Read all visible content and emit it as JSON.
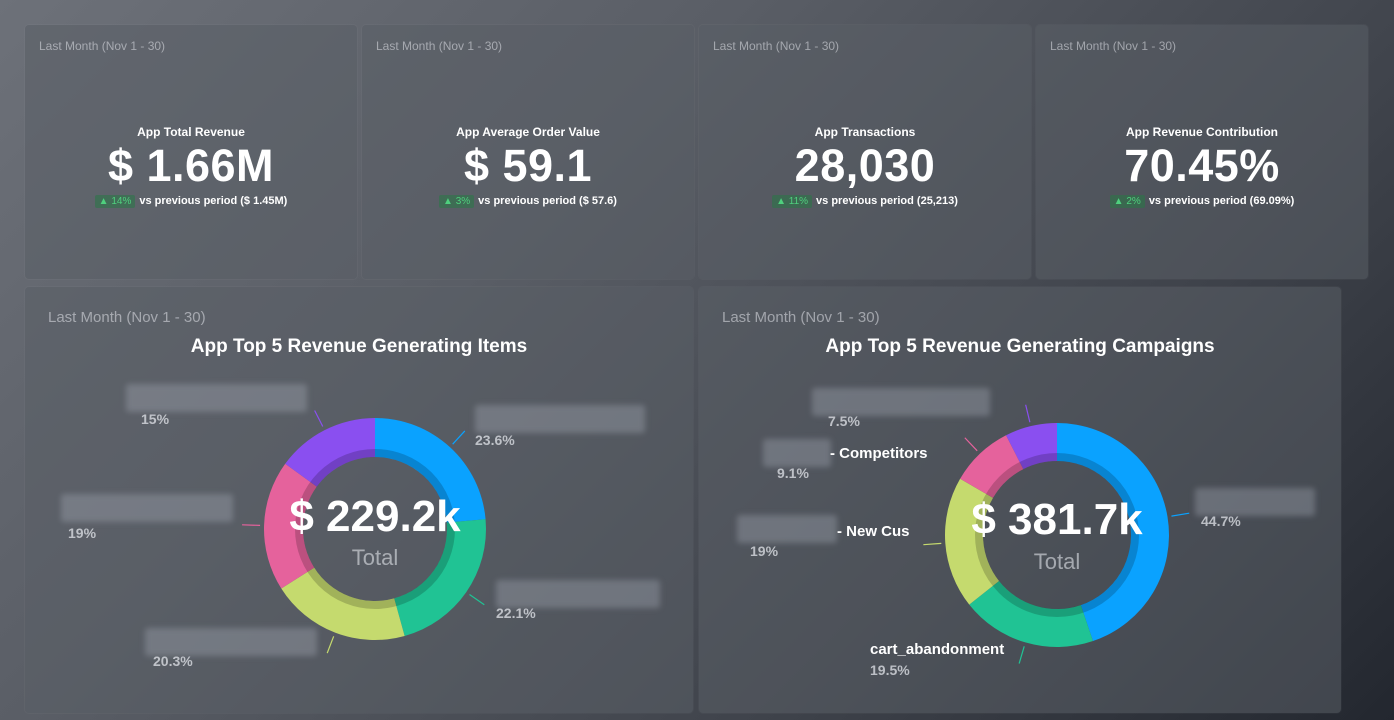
{
  "kpis": [
    {
      "period": "Last Month (Nov 1 - 30)",
      "title": "App Total Revenue",
      "value": "$ 1.66M",
      "change": "▲ 14%",
      "compare": "vs previous period ($ 1.45M)"
    },
    {
      "period": "Last Month (Nov 1 - 30)",
      "title": "App Average Order Value",
      "value": "$ 59.1",
      "change": "▲ 3%",
      "compare": "vs previous period ($ 57.6)"
    },
    {
      "period": "Last Month (Nov 1 - 30)",
      "title": "App Transactions",
      "value": "28,030",
      "change": "▲ 11%",
      "compare": "vs previous period (25,213)"
    },
    {
      "period": "Last Month (Nov 1 - 30)",
      "title": "App Revenue Contribution",
      "value": "70.45%",
      "change": "▲ 2%",
      "compare": "vs previous period (69.09%)"
    }
  ],
  "items_chart": {
    "period": "Last Month (Nov 1 - 30)",
    "title": "App Top 5 Revenue Generating Items",
    "center_value": "$ 229.2k",
    "center_label": "Total",
    "labels": [
      "23.6%",
      "22.1%",
      "20.3%",
      "19%",
      "15%"
    ]
  },
  "campaigns_chart": {
    "period": "Last Month (Nov 1 - 30)",
    "title": "App Top 5 Revenue Generating Campaigns",
    "center_value": "$ 381.7k",
    "center_label": "Total",
    "labels": [
      "44.7%",
      "19.5%",
      "19%",
      "9.1%",
      "7.5%"
    ],
    "names": [
      "cart_abandonment",
      "- New Cus",
      "- Competitors"
    ]
  },
  "colors": {
    "blue": "#0aa2ff",
    "teal": "#20c394",
    "lime": "#c5da6e",
    "pink": "#e5629c",
    "purple": "#8a4ff0"
  },
  "chart_data": [
    {
      "type": "pie",
      "title": "App Top 5 Revenue Generating Items",
      "values": [
        23.6,
        22.1,
        20.3,
        19,
        15
      ]
    },
    {
      "type": "pie",
      "title": "App Top 5 Revenue Generating Campaigns",
      "values": [
        44.7,
        19.5,
        19,
        9.1,
        7.5
      ]
    }
  ]
}
